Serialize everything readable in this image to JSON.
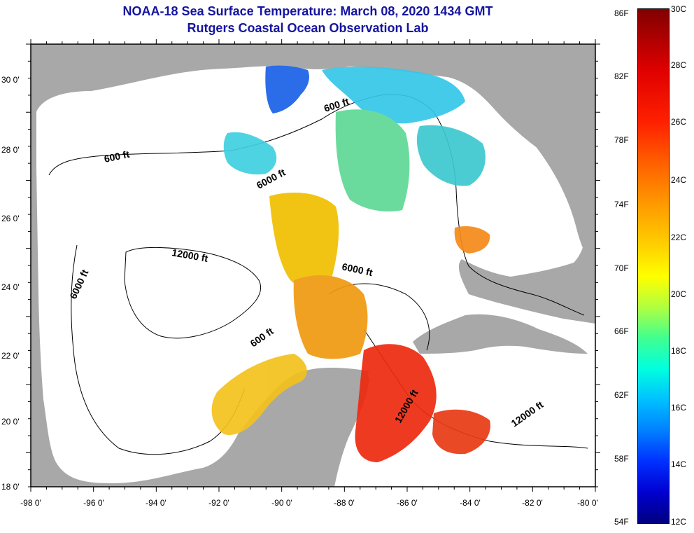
{
  "header": {
    "title": "NOAA-18 Sea Surface Temperature:  March 08, 2020 1434 GMT",
    "subtitle": "Rutgers Coastal Ocean Observation Lab"
  },
  "axes": {
    "lon_ticks": [
      "-98 0'",
      "-96 0'",
      "-94 0'",
      "-92 0'",
      "-90 0'",
      "-88 0'",
      "-86 0'",
      "-84 0'",
      "-82 0'",
      "-80 0'"
    ],
    "lat_ticks": [
      "30 0'",
      "28 0'",
      "26 0'",
      "24 0'",
      "22 0'",
      "20 0'",
      "18 0'"
    ]
  },
  "contour_labels": [
    "600 ft",
    "600 ft",
    "6000 ft",
    "12000 ft",
    "6000 ft",
    "6000 ft",
    "600 ft",
    "12000 ft",
    "12000 ft"
  ],
  "colorbar": {
    "f_labels": [
      "86F",
      "82F",
      "78F",
      "74F",
      "70F",
      "66F",
      "62F",
      "58F",
      "54F"
    ],
    "c_labels": [
      "30C",
      "28C",
      "26C",
      "24C",
      "22C",
      "20C",
      "18C",
      "16C",
      "14C",
      "12C"
    ]
  },
  "colors": {
    "land": "#a8a8a8",
    "ocean": "#ffffff",
    "title": "#1414a0"
  }
}
